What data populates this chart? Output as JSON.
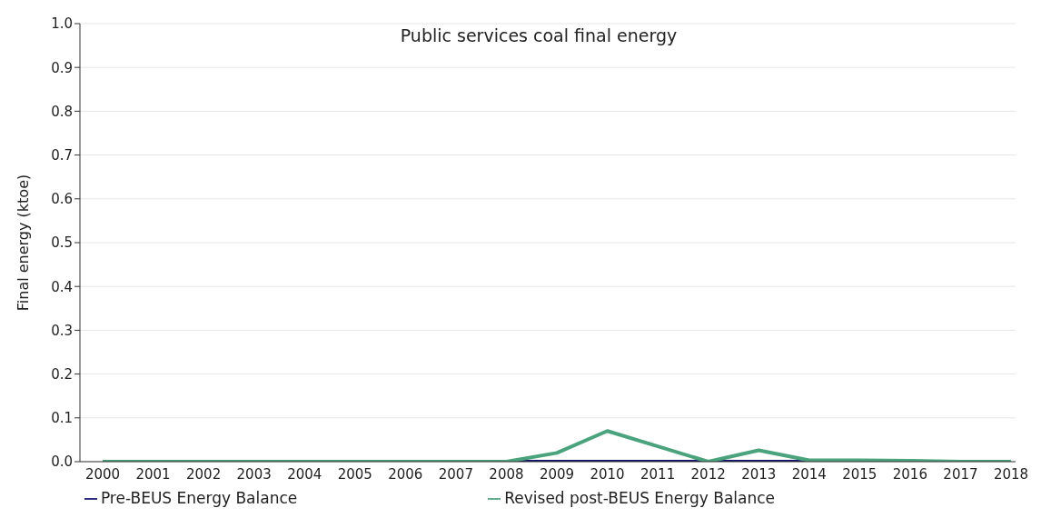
{
  "chart_data": {
    "type": "line",
    "title": "Public services coal final energy",
    "ylabel": "Final energy (ktoe)",
    "categories": [
      "2000",
      "2001",
      "2002",
      "2003",
      "2004",
      "2005",
      "2006",
      "2007",
      "2008",
      "2009",
      "2010",
      "2011",
      "2012",
      "2013",
      "2014",
      "2015",
      "2016",
      "2017",
      "2018"
    ],
    "series": [
      {
        "name": "Pre-BEUS Energy Balance",
        "color": "#13136b",
        "values": [
          null,
          null,
          null,
          null,
          null,
          null,
          null,
          null,
          0,
          0,
          0,
          0,
          0,
          0,
          0,
          null,
          null,
          null,
          null
        ]
      },
      {
        "name": "Revised post-BEUS Energy Balance",
        "color": "#4aa37c",
        "values": [
          0,
          0,
          0,
          0,
          0,
          0,
          0,
          0,
          0,
          0.02,
          0.07,
          0.035,
          0,
          0.026,
          0.003,
          0.003,
          0.002,
          0,
          0
        ]
      }
    ],
    "ylim": [
      0,
      1
    ],
    "yticks": [
      {
        "value": 0,
        "label": "0.0"
      },
      {
        "value": 0.1,
        "label": "0.1"
      },
      {
        "value": 0.2,
        "label": "0.2"
      },
      {
        "value": 0.3,
        "label": "0.3"
      },
      {
        "value": 0.4,
        "label": "0.4"
      },
      {
        "value": 0.5,
        "label": "0.5"
      },
      {
        "value": 0.6,
        "label": "0.6"
      },
      {
        "value": 0.7,
        "label": "0.7"
      },
      {
        "value": 0.8,
        "label": "0.8"
      },
      {
        "value": 0.9,
        "label": "0.9"
      },
      {
        "value": 1,
        "label": "1.0"
      }
    ],
    "grid": "y",
    "legend": "bottom",
    "marker": "none",
    "line_style": "solid"
  }
}
